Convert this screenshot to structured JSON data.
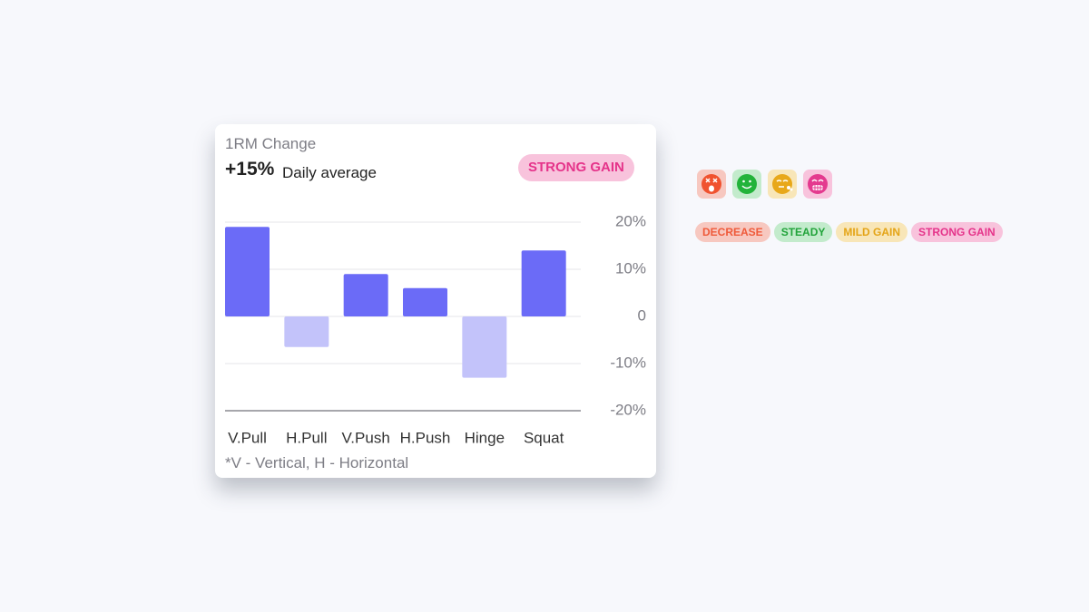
{
  "card": {
    "title": "1RM Change",
    "headline": "+15%",
    "headline_caption": "Daily average",
    "badge": "STRONG GAIN",
    "footnote": "*V - Vertical, H - Horizontal"
  },
  "chart_data": {
    "type": "bar",
    "categories": [
      "V.Pull",
      "H.Pull",
      "V.Push",
      "H.Push",
      "Hinge",
      "Squat"
    ],
    "values": [
      19,
      -6.5,
      9,
      6,
      -13,
      14
    ],
    "color": "#6b6bf7",
    "negative_color": "#c3c3fa",
    "ylim": [
      -20,
      20
    ],
    "yticks": [
      {
        "value": 20,
        "label": "20%"
      },
      {
        "value": 10,
        "label": "10%"
      },
      0,
      {
        "value": -10,
        "label": "-10%"
      },
      {
        "value": -20,
        "label": "-20%"
      }
    ],
    "grid": true
  },
  "legend_badges": [
    "DECREASE",
    "STEADY",
    "MILD GAIN",
    "STRONG GAIN"
  ]
}
